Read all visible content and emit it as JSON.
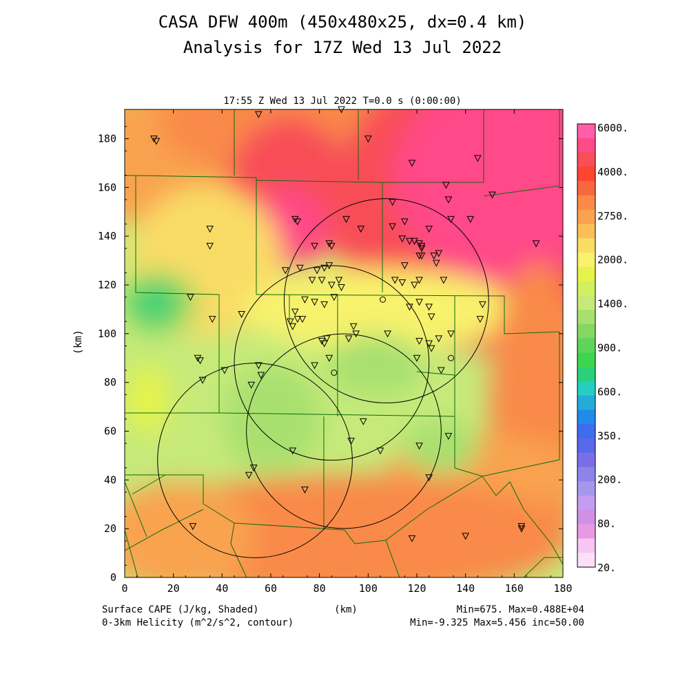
{
  "title_line1": "CASA DFW 400m (450x480x25, dx=0.4 km)",
  "title_line2": "Analysis for 17Z Wed 13 Jul 2022",
  "subtitle": "17:55 Z Wed 13 Jul 2022    T=0.0 s (0:00:00)",
  "footer": {
    "field1": "Surface CAPE (J/kg, Shaded)",
    "field2": "0-3km Helicity (m^2/s^2, contour)",
    "xunit": "(km)",
    "stats1": "Min=675. Max=0.488E+04",
    "stats2": "Min=-9.325 Max=5.456 inc=50.00"
  },
  "chart_data": {
    "type": "heatmap",
    "xlabel": "(km)",
    "ylabel": "(km)",
    "xlim": [
      0,
      180
    ],
    "ylim": [
      0,
      192
    ],
    "xticks": [
      "0",
      "20",
      "40",
      "60",
      "80",
      "100",
      "120",
      "140",
      "160",
      "180"
    ],
    "yticks": [
      "0",
      "20",
      "40",
      "60",
      "80",
      "100",
      "120",
      "140",
      "160",
      "180"
    ],
    "colorbar": {
      "labels": [
        "6000.",
        "4000.",
        "2750.",
        "2000.",
        "1400.",
        "900.",
        "600.",
        "350.",
        "200.",
        "80.",
        "20."
      ],
      "colors": [
        "#ff5fa8",
        "#ff4a88",
        "#f84e56",
        "#ff4530",
        "#f8683e",
        "#f98a49",
        "#f9a34f",
        "#fbbf57",
        "#f9dc66",
        "#f8f26d",
        "#e6f34a",
        "#d2ef62",
        "#c6ea7a",
        "#a8e070",
        "#84d862",
        "#5fd45a",
        "#3ed54e",
        "#2ad07a",
        "#24cfc0",
        "#23acd8",
        "#228bea",
        "#3e6cef",
        "#5a68ea",
        "#7a6ee8",
        "#8c84e8",
        "#a696ee",
        "#c49cf0",
        "#d090e8",
        "#e79ae2",
        "#f7c6f3",
        "#fde0f8"
      ]
    },
    "cape_field": {
      "range": [
        675,
        4880
      ],
      "features": [
        {
          "type": "max",
          "x": 72,
          "y": 147,
          "value": 4880
        },
        {
          "type": "max",
          "x": 165,
          "y": 145,
          "value": 4000
        },
        {
          "type": "max",
          "x": 158,
          "y": 180,
          "value": 4000
        },
        {
          "type": "min",
          "x": 12,
          "y": 113,
          "value": 675
        },
        {
          "type": "min",
          "x": 60,
          "y": 66,
          "value": 1100
        },
        {
          "type": "min",
          "x": 105,
          "y": 92,
          "value": 1150
        },
        {
          "type": "min",
          "x": 125,
          "y": 60,
          "value": 1150
        }
      ]
    },
    "radar_rings": [
      {
        "x": 107.5,
        "y": 113.5,
        "r": 42
      },
      {
        "x": 85,
        "y": 88,
        "r": 40
      },
      {
        "x": 53.5,
        "y": 48,
        "r": 40
      },
      {
        "x": 90,
        "y": 60,
        "r": 40
      }
    ],
    "stations": [
      [
        12,
        180
      ],
      [
        13,
        179
      ],
      [
        55,
        190
      ],
      [
        89,
        192
      ],
      [
        100,
        180
      ],
      [
        118,
        170
      ],
      [
        145,
        172
      ],
      [
        151,
        157
      ],
      [
        132,
        161
      ],
      [
        133,
        155
      ],
      [
        134,
        147
      ],
      [
        142,
        147
      ],
      [
        35,
        143
      ],
      [
        35,
        136
      ],
      [
        27,
        115
      ],
      [
        36,
        106
      ],
      [
        30,
        90
      ],
      [
        31,
        89
      ],
      [
        32,
        81
      ],
      [
        41,
        85
      ],
      [
        48,
        108
      ],
      [
        52,
        79
      ],
      [
        55,
        87
      ],
      [
        56,
        83
      ],
      [
        51,
        42
      ],
      [
        53,
        45
      ],
      [
        69,
        52
      ],
      [
        74,
        36
      ],
      [
        28,
        21
      ],
      [
        70,
        147
      ],
      [
        71,
        146
      ],
      [
        78,
        136
      ],
      [
        84,
        137
      ],
      [
        85,
        136
      ],
      [
        84,
        128
      ],
      [
        82,
        127
      ],
      [
        66,
        126
      ],
      [
        72,
        127
      ],
      [
        79,
        126
      ],
      [
        77,
        122
      ],
      [
        81,
        122
      ],
      [
        85,
        120
      ],
      [
        88,
        122
      ],
      [
        89,
        119
      ],
      [
        91,
        147
      ],
      [
        97,
        143
      ],
      [
        110,
        154
      ],
      [
        110,
        144
      ],
      [
        115,
        146
      ],
      [
        114,
        139
      ],
      [
        117,
        138
      ],
      [
        119,
        138
      ],
      [
        121,
        137
      ],
      [
        122,
        136
      ],
      [
        122,
        135
      ],
      [
        121,
        132
      ],
      [
        122,
        132
      ],
      [
        125,
        143
      ],
      [
        127,
        132
      ],
      [
        128,
        129
      ],
      [
        129,
        133
      ],
      [
        131,
        122
      ],
      [
        115,
        128
      ],
      [
        111,
        122
      ],
      [
        114,
        121
      ],
      [
        119,
        120
      ],
      [
        121,
        122
      ],
      [
        117,
        111
      ],
      [
        121,
        113
      ],
      [
        125,
        111
      ],
      [
        126,
        107
      ],
      [
        74,
        114
      ],
      [
        78,
        113
      ],
      [
        82,
        112
      ],
      [
        86,
        115
      ],
      [
        70,
        109
      ],
      [
        68,
        105
      ],
      [
        69,
        103
      ],
      [
        71,
        106
      ],
      [
        73,
        106
      ],
      [
        108,
        100
      ],
      [
        94,
        103
      ],
      [
        95,
        100
      ],
      [
        92,
        98
      ],
      [
        81,
        97
      ],
      [
        82,
        96
      ],
      [
        83,
        98
      ],
      [
        78,
        87
      ],
      [
        84,
        90
      ],
      [
        121,
        97
      ],
      [
        125,
        96
      ],
      [
        126,
        94
      ],
      [
        129,
        98
      ],
      [
        134,
        100
      ],
      [
        120,
        90
      ],
      [
        130,
        85
      ],
      [
        147,
        112
      ],
      [
        146,
        106
      ],
      [
        169,
        137
      ],
      [
        98,
        64
      ],
      [
        93,
        56
      ],
      [
        105,
        52
      ],
      [
        121,
        54
      ],
      [
        133,
        58
      ],
      [
        125,
        41
      ],
      [
        118,
        16
      ],
      [
        140,
        17
      ],
      [
        163,
        21
      ],
      [
        163,
        20
      ]
    ],
    "radar_sites": [
      [
        106,
        114
      ],
      [
        134,
        90
      ],
      [
        86,
        84
      ]
    ]
  }
}
